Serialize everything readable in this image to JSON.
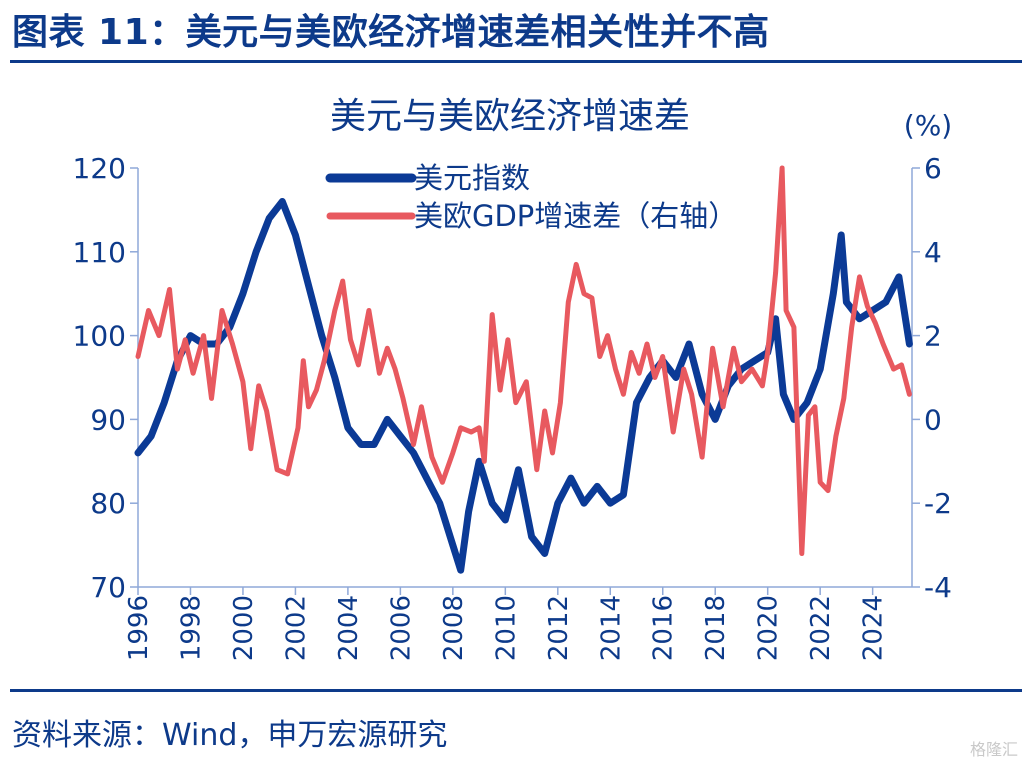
{
  "header": {
    "title": "图表 11：美元与美欧经济增速差相关性并不高"
  },
  "footer": {
    "source": "资料来源：Wind，申万宏源研究",
    "watermark": "格隆汇"
  },
  "colors": {
    "navy": "#0d3a8a",
    "usd_series": "#0b3a96",
    "gdp_series": "#e8595f",
    "axis": "#8fa8d8"
  },
  "chart_data": {
    "type": "line",
    "title": "美元与美欧经济增速差",
    "right_unit_label": "(%)",
    "legend_position": "top-left",
    "grid": false,
    "x_ticks": [
      "1996",
      "1998",
      "2000",
      "2002",
      "2004",
      "2006",
      "2008",
      "2010",
      "2012",
      "2014",
      "2016",
      "2018",
      "2020",
      "2022",
      "2024"
    ],
    "xlim": [
      1996,
      2025.5
    ],
    "left_axis": {
      "ylim": [
        70,
        120
      ],
      "ticks": [
        "70",
        "80",
        "90",
        "100",
        "110",
        "120"
      ]
    },
    "right_axis": {
      "ylim": [
        -4,
        6
      ],
      "ticks": [
        "-4",
        "-2",
        "0",
        "2",
        "4",
        "6"
      ]
    },
    "series": [
      {
        "name": "美元指数",
        "axis": "left",
        "x": [
          1996.0,
          1996.5,
          1997.0,
          1997.5,
          1998.0,
          1998.5,
          1999.0,
          1999.5,
          2000.0,
          2000.5,
          2001.0,
          2001.5,
          2002.0,
          2002.5,
          2003.0,
          2003.5,
          2004.0,
          2004.5,
          2005.0,
          2005.5,
          2006.0,
          2006.5,
          2007.0,
          2007.5,
          2008.0,
          2008.3,
          2008.6,
          2009.0,
          2009.5,
          2010.0,
          2010.5,
          2011.0,
          2011.5,
          2012.0,
          2012.5,
          2013.0,
          2013.5,
          2014.0,
          2014.5,
          2015.0,
          2015.5,
          2016.0,
          2016.5,
          2017.0,
          2017.5,
          2018.0,
          2018.5,
          2019.0,
          2019.5,
          2020.0,
          2020.3,
          2020.6,
          2021.0,
          2021.5,
          2022.0,
          2022.5,
          2022.8,
          2023.0,
          2023.5,
          2024.0,
          2024.5,
          2025.0,
          2025.4
        ],
        "values": [
          86,
          88,
          92,
          97,
          100,
          99,
          99,
          101,
          105,
          110,
          114,
          116,
          112,
          106,
          100,
          95,
          89,
          87,
          87,
          90,
          88,
          86,
          83,
          80,
          75,
          72,
          79,
          85,
          80,
          78,
          84,
          76,
          74,
          80,
          83,
          80,
          82,
          80,
          81,
          92,
          95,
          97,
          95,
          99,
          93,
          90,
          94,
          96,
          97,
          98,
          102,
          93,
          90,
          92,
          96,
          105,
          112,
          104,
          102,
          103,
          104,
          107,
          99
        ]
      },
      {
        "name": "美欧GDP增速差（右轴）",
        "axis": "right",
        "x": [
          1996.0,
          1996.4,
          1996.8,
          1997.2,
          1997.5,
          1997.8,
          1998.1,
          1998.5,
          1998.8,
          1999.2,
          1999.6,
          2000.0,
          2000.3,
          2000.6,
          2000.9,
          2001.3,
          2001.7,
          2002.1,
          2002.3,
          2002.5,
          2002.8,
          2003.1,
          2003.5,
          2003.8,
          2004.1,
          2004.4,
          2004.8,
          2005.2,
          2005.5,
          2005.8,
          2006.1,
          2006.5,
          2006.8,
          2007.2,
          2007.6,
          2008.0,
          2008.3,
          2008.7,
          2009.0,
          2009.2,
          2009.5,
          2009.8,
          2010.1,
          2010.4,
          2010.8,
          2011.2,
          2011.5,
          2011.8,
          2012.1,
          2012.4,
          2012.7,
          2013.0,
          2013.3,
          2013.6,
          2013.9,
          2014.2,
          2014.5,
          2014.8,
          2015.1,
          2015.4,
          2015.7,
          2016.0,
          2016.4,
          2016.8,
          2017.1,
          2017.5,
          2017.9,
          2018.3,
          2018.7,
          2019.0,
          2019.4,
          2019.8,
          2020.0,
          2020.3,
          2020.55,
          2020.7,
          2021.0,
          2021.3,
          2021.55,
          2021.8,
          2022.0,
          2022.3,
          2022.6,
          2022.9,
          2023.2,
          2023.5,
          2023.8,
          2024.1,
          2024.4,
          2024.8,
          2025.1,
          2025.4
        ],
        "values": [
          1.5,
          2.6,
          2.0,
          3.1,
          1.2,
          1.9,
          1.1,
          2.0,
          0.5,
          2.6,
          1.8,
          0.9,
          -0.7,
          0.8,
          0.2,
          -1.2,
          -1.3,
          -0.2,
          1.4,
          0.3,
          0.7,
          1.4,
          2.6,
          3.3,
          1.9,
          1.3,
          2.6,
          1.1,
          1.7,
          1.2,
          0.5,
          -0.6,
          0.3,
          -0.9,
          -1.5,
          -0.8,
          -0.2,
          -0.3,
          -0.2,
          -1.0,
          2.5,
          0.7,
          1.9,
          0.4,
          0.9,
          -1.2,
          0.2,
          -0.8,
          0.4,
          2.8,
          3.7,
          3.0,
          2.9,
          1.5,
          2.0,
          1.2,
          0.6,
          1.6,
          1.1,
          1.8,
          1.0,
          1.5,
          -0.3,
          1.2,
          0.6,
          -0.9,
          1.7,
          0.3,
          1.7,
          0.9,
          1.2,
          0.8,
          1.6,
          3.5,
          6.0,
          2.6,
          2.2,
          -3.2,
          0.1,
          0.3,
          -1.5,
          -1.7,
          -0.4,
          0.5,
          2.2,
          3.4,
          2.7,
          2.3,
          1.8,
          1.2,
          1.3,
          0.6
        ]
      }
    ]
  }
}
